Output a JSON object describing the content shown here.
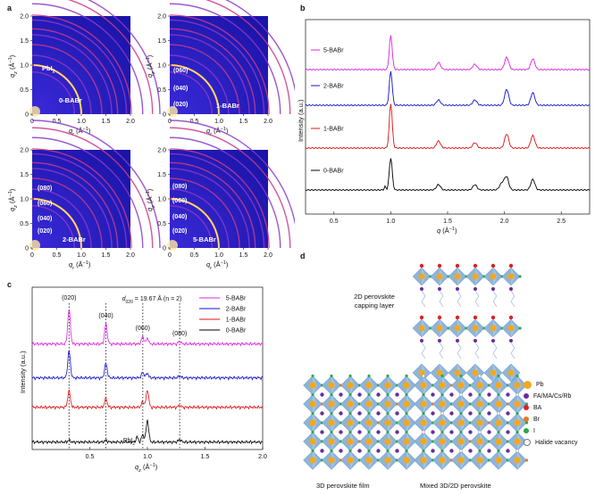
{
  "panel_labels": {
    "a": "a",
    "b": "b",
    "c": "c",
    "d": "d"
  },
  "gixd": {
    "xlabel": "q",
    "xlabel_sub": "r",
    "xlabel_unit": " (Å",
    "xlabel_exp": "−1",
    "xlabel_close": ")",
    "ylabel": "q",
    "ylabel_sub": "z",
    "xticks": [
      "0",
      "0.5",
      "1.0",
      "1.5",
      "2.0"
    ],
    "yticks": [
      "0",
      "0.5",
      "1.0",
      "1.5",
      "2.0"
    ],
    "tiles": [
      {
        "name": "0-BABr",
        "labels": [
          "PbI",
          "0-BABr"
        ]
      },
      {
        "name": "1-BABr",
        "labels": [
          "(060)",
          "(040)",
          "(020)",
          "1-BABr"
        ]
      },
      {
        "name": "2-BABr",
        "labels": [
          "(080)",
          "(060)",
          "(040)",
          "(020)",
          "2-BABr"
        ]
      },
      {
        "name": "5-BABr",
        "labels": [
          "(080)",
          "(060)",
          "(040)",
          "(020)",
          "5-BABr"
        ]
      }
    ],
    "pbi_sub": "2"
  },
  "chart_data": [
    {
      "panel": "b",
      "type": "line",
      "xlabel": "q (Å−1)",
      "ylabel": "Intensity (a.u.)",
      "xlim": [
        0.25,
        2.75
      ],
      "xticks": [
        "0.5",
        "1.0",
        "1.5",
        "2.0",
        "2.5"
      ],
      "series": [
        {
          "name": "5-BABr",
          "color": "#e020e0",
          "peaks": [
            1.0,
            1.42,
            1.74,
            2.02,
            2.25
          ]
        },
        {
          "name": "2-BABr",
          "color": "#1010d0",
          "peaks": [
            1.0,
            1.42,
            1.74,
            2.02,
            2.25
          ]
        },
        {
          "name": "1-BABr",
          "color": "#e01010",
          "peaks": [
            1.0,
            1.42,
            1.74,
            2.02,
            2.25
          ]
        },
        {
          "name": "0-BABr",
          "color": "#000000",
          "peaks": [
            1.0,
            1.42,
            1.74,
            2.02,
            2.25
          ]
        }
      ]
    },
    {
      "panel": "c",
      "type": "line",
      "xlabel": "qz (Å−1)",
      "ylabel": "Intensity (a.u.)",
      "xlim": [
        0.0,
        2.0
      ],
      "xticks": [
        "0.5",
        "1.0",
        "1.5",
        "2.0"
      ],
      "peak_labels": [
        "(020)",
        "(040)",
        "(060)",
        "(080)"
      ],
      "peak_positions": [
        0.32,
        0.64,
        0.96,
        1.28
      ],
      "annotation": "d",
      "annotation_sub": "020",
      "annotation_rest": " = 19.67 Å (n = 2)",
      "pbi2_label": "PbI",
      "series": [
        {
          "name": "5-BABr",
          "color": "#e020e0"
        },
        {
          "name": "2-BABr",
          "color": "#1010d0"
        },
        {
          "name": "1-BABr",
          "color": "#e01010"
        },
        {
          "name": "0-BABr",
          "color": "#000000"
        }
      ]
    }
  ],
  "schematic": {
    "capping_label_1": "2D perovskite",
    "capping_label_2": "capping layer",
    "film_label": "3D perovskite film",
    "mixed_label": "Mixed 3D/2D perovskite",
    "legend": [
      {
        "label": "Pb",
        "color": "#f2a81e"
      },
      {
        "label": "FA/MA/Cs/Rb",
        "color": "#6a2c9c"
      },
      {
        "label": "BA",
        "color": "#e02020"
      },
      {
        "label": "Br",
        "color": "#e07a20"
      },
      {
        "label": "I",
        "color": "#2aa84a"
      },
      {
        "label": "Halide vacancy",
        "color": "#ffffff"
      }
    ]
  }
}
